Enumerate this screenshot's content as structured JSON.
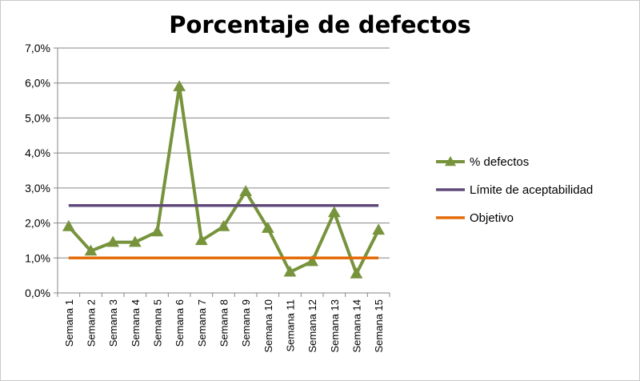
{
  "chart_data": {
    "type": "line",
    "title": "Porcentaje de defectos",
    "xlabel": "",
    "ylabel": "",
    "categories": [
      "Semana 1",
      "Semana 2",
      "Semana 3",
      "Semana 4",
      "Semana 5",
      "Semana 6",
      "Semana 7",
      "Semana 8",
      "Semana 9",
      "Semana 10",
      "Semana 11",
      "Semana 12",
      "Semana 13",
      "Semana 14",
      "Semana 15"
    ],
    "ylim": [
      0,
      0.07
    ],
    "y_ticks": [
      "0,0%",
      "1,0%",
      "2,0%",
      "3,0%",
      "4,0%",
      "5,0%",
      "6,0%",
      "7,0%"
    ],
    "grid": true,
    "legend_position": "right",
    "series": [
      {
        "name": "% defectos",
        "color": "#77933c",
        "marker": "triangle",
        "values": [
          0.019,
          0.012,
          0.0145,
          0.0145,
          0.0175,
          0.059,
          0.015,
          0.019,
          0.029,
          0.0185,
          0.006,
          0.009,
          0.023,
          0.0055,
          0.018
        ]
      },
      {
        "name": "Límite de aceptabilidad",
        "color": "#604a7b",
        "marker": "none",
        "values": [
          0.025,
          0.025,
          0.025,
          0.025,
          0.025,
          0.025,
          0.025,
          0.025,
          0.025,
          0.025,
          0.025,
          0.025,
          0.025,
          0.025,
          0.025
        ]
      },
      {
        "name": "Objetivo",
        "color": "#e46c0a",
        "marker": "none",
        "values": [
          0.01,
          0.01,
          0.01,
          0.01,
          0.01,
          0.01,
          0.01,
          0.01,
          0.01,
          0.01,
          0.01,
          0.01,
          0.01,
          0.01,
          0.01
        ]
      }
    ]
  }
}
